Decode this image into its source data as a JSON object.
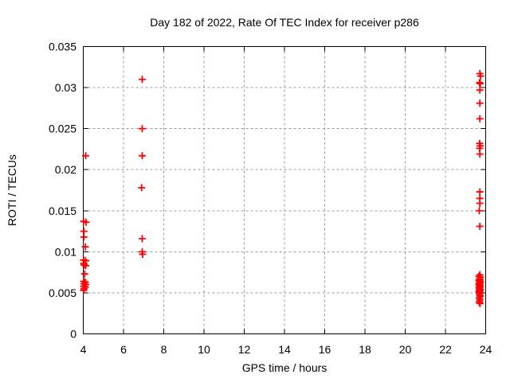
{
  "page": {
    "background": "#ffffff"
  },
  "chart_data": {
    "type": "scatter",
    "title": "Day 182 of 2022, Rate Of TEC Index for receiver p286",
    "xlabel": "GPS time / hours",
    "ylabel": "ROTI / TECUs",
    "xlim": [
      4,
      24
    ],
    "ylim": [
      0,
      0.035
    ],
    "xticks": [
      4,
      6,
      8,
      10,
      12,
      14,
      16,
      18,
      20,
      22,
      24
    ],
    "yticks": [
      0,
      0.005,
      0.01,
      0.015,
      0.02,
      0.025,
      0.03,
      0.035
    ],
    "ytick_labels": [
      "0",
      "0.005",
      "0.01",
      "0.015",
      "0.02",
      "0.025",
      "0.03",
      "0.035"
    ],
    "grid": true,
    "legend_position": "none",
    "grid_color": "#999999",
    "axis_color": "#000000",
    "marker": {
      "shape": "plus",
      "color": "#ff0000",
      "size": 9
    },
    "series": [
      {
        "name": "ROTI",
        "points": [
          [
            4.12,
            0.0217
          ],
          [
            4.02,
            0.0137
          ],
          [
            4.14,
            0.0136
          ],
          [
            4.03,
            0.0125
          ],
          [
            4.03,
            0.0118
          ],
          [
            4.1,
            0.0106
          ],
          [
            4.02,
            0.009
          ],
          [
            4.12,
            0.0089
          ],
          [
            4.03,
            0.0086
          ],
          [
            4.04,
            0.0084
          ],
          [
            4.12,
            0.0083
          ],
          [
            4.07,
            0.0073
          ],
          [
            4.02,
            0.0064
          ],
          [
            4.1,
            0.0063
          ],
          [
            4.04,
            0.0061
          ],
          [
            4.12,
            0.006
          ],
          [
            4.02,
            0.0058
          ],
          [
            4.1,
            0.0057
          ],
          [
            4.04,
            0.0055
          ],
          [
            4.02,
            0.0053
          ],
          [
            6.93,
            0.031
          ],
          [
            6.93,
            0.025
          ],
          [
            6.93,
            0.0217
          ],
          [
            6.9,
            0.0178
          ],
          [
            6.93,
            0.0116
          ],
          [
            6.93,
            0.01
          ],
          [
            6.95,
            0.0097
          ],
          [
            23.71,
            0.0317
          ],
          [
            23.75,
            0.0314
          ],
          [
            23.69,
            0.0306
          ],
          [
            23.73,
            0.0305
          ],
          [
            23.71,
            0.0297
          ],
          [
            23.71,
            0.0281
          ],
          [
            23.71,
            0.0262
          ],
          [
            23.7,
            0.0232
          ],
          [
            23.73,
            0.0229
          ],
          [
            23.7,
            0.0226
          ],
          [
            23.71,
            0.0219
          ],
          [
            23.71,
            0.0173
          ],
          [
            23.71,
            0.0165
          ],
          [
            23.71,
            0.0159
          ],
          [
            23.68,
            0.015
          ],
          [
            23.71,
            0.0131
          ],
          [
            23.71,
            0.0072
          ],
          [
            23.66,
            0.007
          ],
          [
            23.74,
            0.0069
          ],
          [
            23.69,
            0.0067
          ],
          [
            23.72,
            0.0066
          ],
          [
            23.66,
            0.0065
          ],
          [
            23.71,
            0.0064
          ],
          [
            23.75,
            0.0063
          ],
          [
            23.68,
            0.0062
          ],
          [
            23.71,
            0.0061
          ],
          [
            23.66,
            0.006
          ],
          [
            23.73,
            0.0059
          ],
          [
            23.69,
            0.0058
          ],
          [
            23.72,
            0.0057
          ],
          [
            23.67,
            0.0056
          ],
          [
            23.7,
            0.0055
          ],
          [
            23.74,
            0.0054
          ],
          [
            23.68,
            0.0053
          ],
          [
            23.71,
            0.0052
          ],
          [
            23.66,
            0.0051
          ],
          [
            23.72,
            0.005
          ],
          [
            23.69,
            0.0049
          ],
          [
            23.7,
            0.0047
          ],
          [
            23.73,
            0.0046
          ],
          [
            23.68,
            0.0044
          ],
          [
            23.71,
            0.0042
          ],
          [
            23.7,
            0.004
          ],
          [
            23.69,
            0.0038
          ],
          [
            23.72,
            0.0037
          ]
        ]
      }
    ]
  }
}
